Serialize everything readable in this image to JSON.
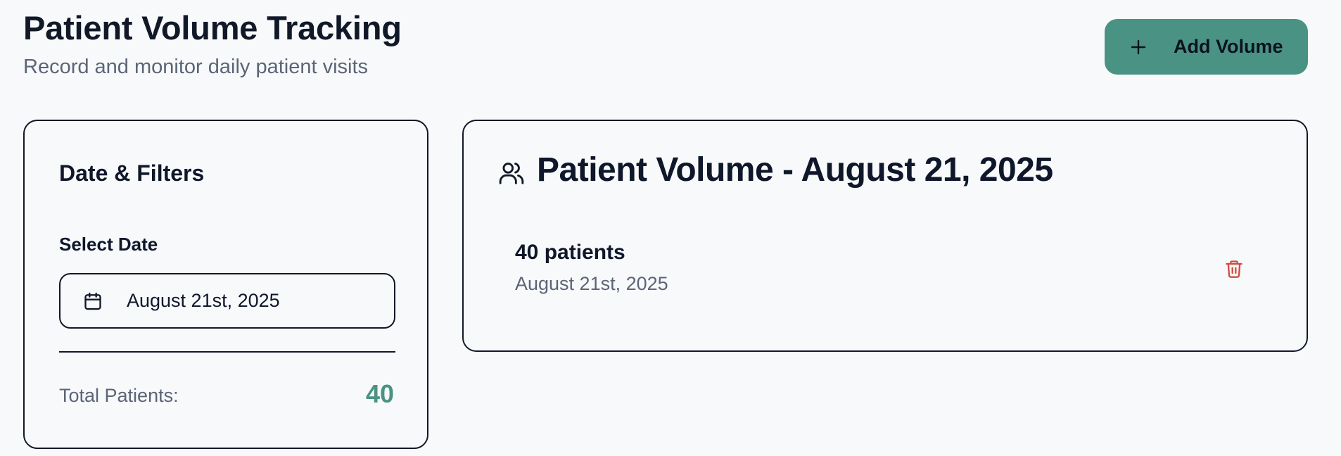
{
  "header": {
    "title": "Patient Volume Tracking",
    "subtitle": "Record and monitor daily patient visits",
    "add_button_label": "Add Volume"
  },
  "filters": {
    "title": "Date & Filters",
    "select_date_label": "Select Date",
    "selected_date": "August 21st, 2025",
    "total_label": "Total Patients:",
    "total_value": "40"
  },
  "volume": {
    "title": "Patient Volume - August 21, 2025",
    "entries": [
      {
        "count": "40 patients",
        "date": "August 21st, 2025"
      }
    ]
  },
  "colors": {
    "accent": "#4a9384",
    "delete": "#d24b3c",
    "text_primary": "#0f172a",
    "text_muted": "#5b6577",
    "background": "#f8f9fb"
  },
  "icons": {
    "add": "plus-icon",
    "date": "calendar-icon",
    "volume": "users-icon",
    "delete": "trash-icon"
  }
}
